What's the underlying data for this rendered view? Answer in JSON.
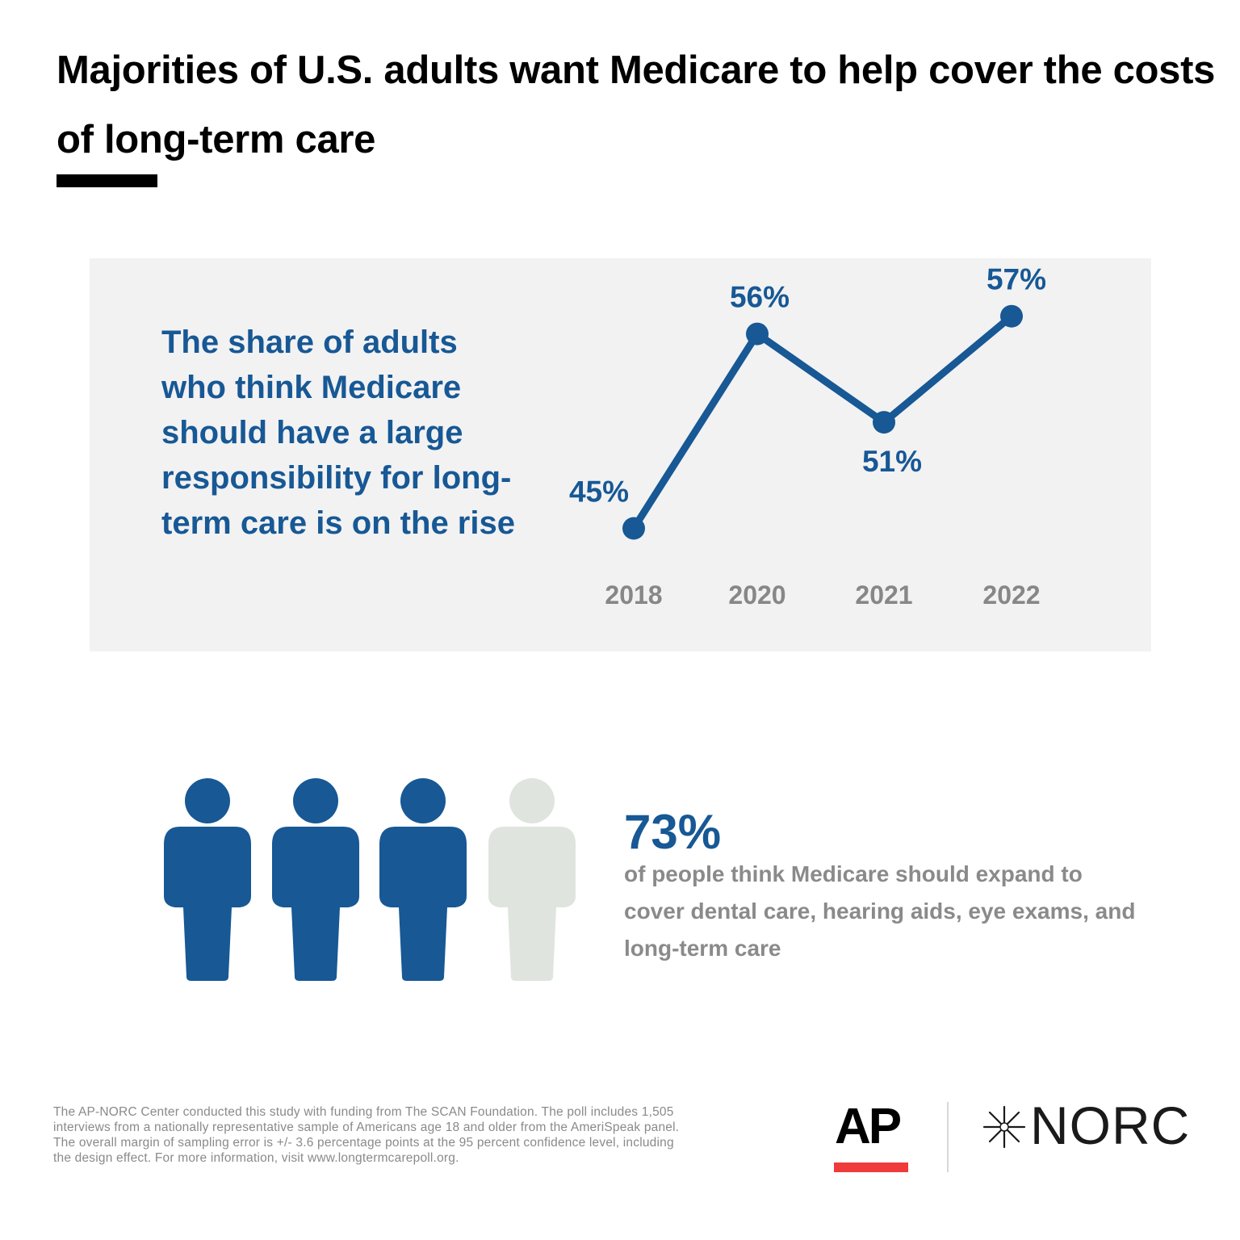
{
  "title": "Majorities of U.S. adults want Medicare to help cover the costs of long-term care",
  "panel": {
    "text": "The share of adults who think Medicare should have a large responsibility for long-term care is on the rise"
  },
  "chart_data": {
    "type": "line",
    "title": "",
    "xlabel": "",
    "ylabel": "",
    "categories": [
      "2018",
      "2020",
      "2021",
      "2022"
    ],
    "series": [
      {
        "values": [
          45,
          56,
          51,
          57
        ],
        "labels": [
          "45%",
          "56%",
          "51%",
          "57%"
        ]
      }
    ],
    "ylim": [
      40,
      60
    ],
    "grid": false,
    "colors": {
      "line": "#175895",
      "axis_label": "#878787"
    }
  },
  "stat": {
    "value": "73%",
    "text": "of people think Medicare should expand to cover dental care, hearing aids, eye exams, and long-term care",
    "people_total": 4,
    "people_filled": 3,
    "colors": {
      "filled": "#175895",
      "empty": "#dfe4df"
    }
  },
  "footnote": "The AP-NORC Center conducted this study with funding from The SCAN Foundation. The poll includes 1,505 interviews from a nationally representative sample of Americans age 18 and older from the AmeriSpeak panel. The overall margin of sampling error is +/- 3.6 percentage points at the 95 percent confidence level, including the design effect. For more information, visit www.longtermcarepoll.org.",
  "logos": {
    "ap": "AP",
    "norc": "NORC",
    "star_icon": "norc-star-icon",
    "ap_bar_color": "#ef3b3b"
  }
}
